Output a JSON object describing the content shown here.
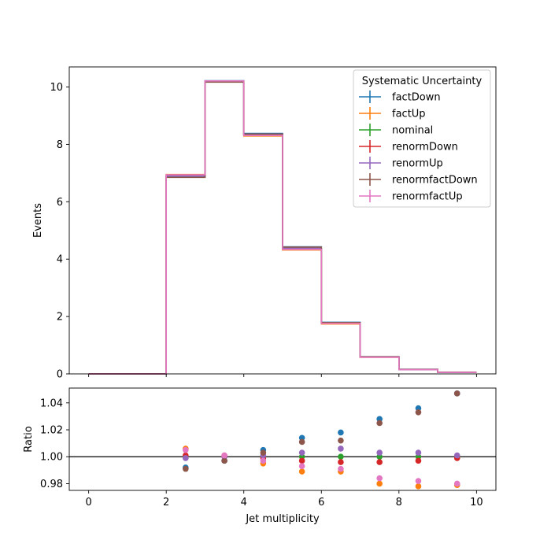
{
  "chart_data": [
    {
      "type": "line",
      "panel": "main",
      "xlabel": "",
      "ylabel": "Events",
      "xlim": [
        -0.5,
        10.5
      ],
      "ylim": [
        0,
        10.7
      ],
      "xticks": [
        0,
        2,
        4,
        6,
        8,
        10
      ],
      "yticks": [
        0,
        2,
        4,
        6,
        8,
        10
      ],
      "bin_edges": [
        0,
        1,
        2,
        3,
        4,
        5,
        6,
        7,
        8,
        9,
        10
      ],
      "legend": {
        "title": "Systematic Uncertainty",
        "placement": "top-right"
      },
      "series": [
        {
          "name": "factDown",
          "color": "#1f77b4",
          "values": [
            0,
            0,
            6.86,
            10.22,
            8.38,
            4.43,
            1.8,
            0.6,
            0.16,
            0.06
          ]
        },
        {
          "name": "factUp",
          "color": "#ff7f0e",
          "values": [
            0,
            0,
            6.95,
            10.21,
            8.29,
            4.32,
            1.74,
            0.58,
            0.15,
            0.05
          ]
        },
        {
          "name": "nominal",
          "color": "#2ca02c",
          "values": [
            0,
            0,
            6.91,
            10.2,
            8.33,
            4.37,
            1.77,
            0.59,
            0.15,
            0.06
          ]
        },
        {
          "name": "renormDown",
          "color": "#d62728",
          "values": [
            0,
            0,
            6.92,
            10.21,
            8.32,
            4.36,
            1.77,
            0.58,
            0.15,
            0.06
          ]
        },
        {
          "name": "renormUp",
          "color": "#9467bd",
          "values": [
            0,
            0,
            6.9,
            10.21,
            8.33,
            4.38,
            1.78,
            0.59,
            0.15,
            0.06
          ]
        },
        {
          "name": "renormfactDown",
          "color": "#8c564b",
          "values": [
            0,
            0,
            6.85,
            10.17,
            8.36,
            4.42,
            1.79,
            0.6,
            0.16,
            0.06
          ]
        },
        {
          "name": "renormfactUp",
          "color": "#e377c2",
          "values": [
            0,
            0,
            6.94,
            10.21,
            8.31,
            4.34,
            1.76,
            0.58,
            0.15,
            0.05
          ]
        }
      ]
    },
    {
      "type": "scatter",
      "panel": "ratio",
      "xlabel": "Jet multiplicity",
      "ylabel": "Ratio",
      "xlim": [
        -0.5,
        10.5
      ],
      "ylim": [
        0.975,
        1.051
      ],
      "xticks": [
        0,
        2,
        4,
        6,
        8,
        10
      ],
      "yticks": [
        0.98,
        1.0,
        1.02,
        1.04
      ],
      "ytick_labels": [
        "0.98",
        "1.00",
        "1.02",
        "1.04"
      ],
      "reference_line": 1.0,
      "x": [
        2.5,
        3.5,
        4.5,
        5.5,
        6.5,
        7.5,
        8.5,
        9.5
      ],
      "series": [
        {
          "name": "factDown",
          "color": "#1f77b4",
          "values": [
            0.992,
            0.997,
            1.005,
            1.014,
            1.018,
            1.028,
            1.036,
            1.047
          ]
        },
        {
          "name": "factUp",
          "color": "#ff7f0e",
          "values": [
            1.006,
            1.001,
            0.995,
            0.989,
            0.989,
            0.98,
            0.978,
            0.979
          ]
        },
        {
          "name": "nominal",
          "color": "#2ca02c",
          "values": [
            1.0,
            1.0,
            1.0,
            1.0,
            1.0,
            1.0,
            1.0,
            1.0
          ]
        },
        {
          "name": "renormDown",
          "color": "#d62728",
          "values": [
            1.001,
            1.0,
            0.999,
            0.997,
            0.996,
            0.996,
            0.997,
            0.999
          ]
        },
        {
          "name": "renormUp",
          "color": "#9467bd",
          "values": [
            0.999,
            1.0,
            1.001,
            1.003,
            1.006,
            1.003,
            1.003,
            1.001
          ]
        },
        {
          "name": "renormfactDown",
          "color": "#8c564b",
          "values": [
            0.991,
            0.997,
            1.003,
            1.011,
            1.012,
            1.025,
            1.033,
            1.047
          ]
        },
        {
          "name": "renormfactUp",
          "color": "#e377c2",
          "values": [
            1.005,
            1.001,
            0.997,
            0.993,
            0.991,
            0.984,
            0.982,
            0.98
          ]
        }
      ]
    }
  ]
}
